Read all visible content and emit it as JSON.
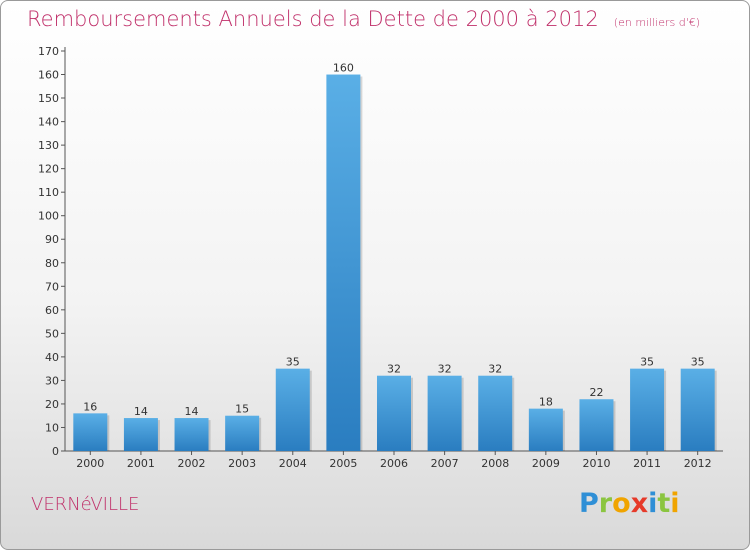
{
  "header": {
    "title": "Remboursements Annuels de la Dette de 2000 à 2012",
    "unit": "(en milliers d'€)"
  },
  "footer": {
    "commune": "VERNéVILLE",
    "logo_letters": [
      "P",
      "r",
      "o",
      "x",
      "i",
      "t",
      "i"
    ],
    "logo_colors": [
      "#2f8fd6",
      "#8bc540",
      "#f0a400",
      "#e63a2a",
      "#2f8fd6",
      "#8bc540",
      "#f0a400"
    ]
  },
  "colors": {
    "accent": "#c0306a",
    "bar_top": "#5aafe6",
    "bar_bottom": "#2a7dc0"
  },
  "chart_data": {
    "type": "bar",
    "categories": [
      "2000",
      "2001",
      "2002",
      "2003",
      "2004",
      "2005",
      "2006",
      "2007",
      "2008",
      "2009",
      "2010",
      "2011",
      "2012"
    ],
    "values": [
      16,
      14,
      14,
      15,
      35,
      160,
      32,
      32,
      32,
      18,
      22,
      35,
      35
    ],
    "ylim": [
      0,
      170
    ],
    "yticks": [
      0,
      10,
      20,
      30,
      40,
      50,
      60,
      70,
      80,
      90,
      100,
      110,
      120,
      130,
      140,
      150,
      160,
      170
    ],
    "grid": false,
    "data_labels": true
  }
}
